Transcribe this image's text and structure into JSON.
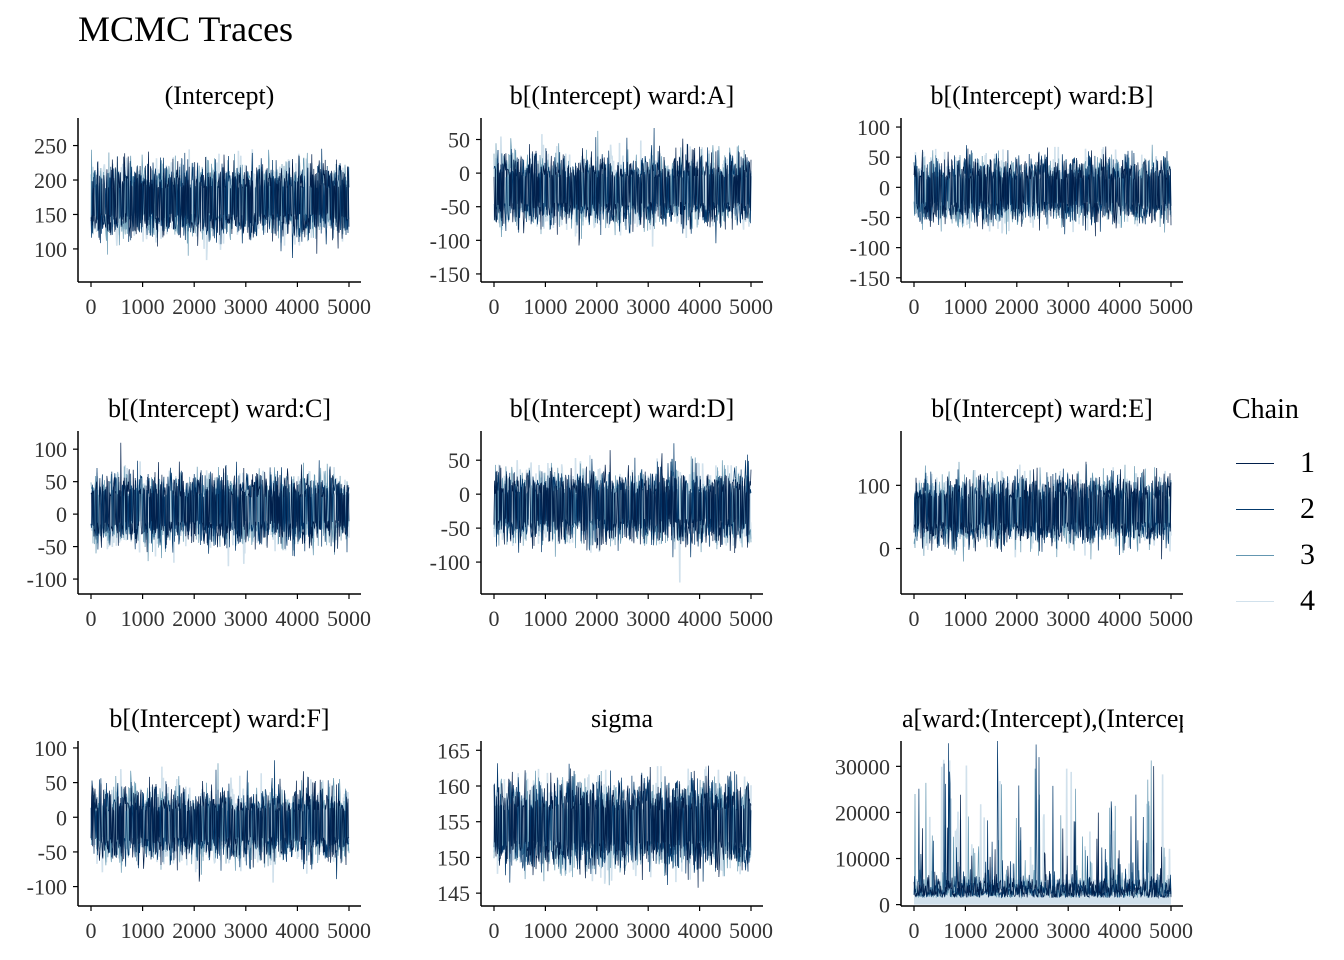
{
  "title": "MCMC Traces",
  "legend": {
    "title": "Chain",
    "items": [
      {
        "label": "1",
        "color": "#011f4b"
      },
      {
        "label": "2",
        "color": "#03396c"
      },
      {
        "label": "3",
        "color": "#6497b1"
      },
      {
        "label": "4",
        "color": "#d1e1ec"
      }
    ]
  },
  "chart_data": [
    {
      "type": "line",
      "title": "(Intercept)",
      "x_ticks": [
        "0",
        "1000",
        "2000",
        "3000",
        "4000",
        "5000"
      ],
      "y_ticks": [
        100,
        150,
        200,
        250
      ],
      "ylim": [
        52,
        290
      ],
      "center": 170,
      "band": 30,
      "spread": 28
    },
    {
      "type": "line",
      "title": "b[(Intercept) ward:A]",
      "x_ticks": [
        "0",
        "1000",
        "2000",
        "3000",
        "4000",
        "5000"
      ],
      "y_ticks": [
        -150,
        -100,
        -50,
        0,
        50
      ],
      "ylim": [
        -162,
        82
      ],
      "center": -25,
      "band": 30,
      "spread": 28
    },
    {
      "type": "line",
      "title": "b[(Intercept) ward:B]",
      "x_ticks": [
        "0",
        "1000",
        "2000",
        "3000",
        "4000",
        "5000"
      ],
      "y_ticks": [
        -150,
        -100,
        -50,
        0,
        50,
        100
      ],
      "ylim": [
        -157,
        115
      ],
      "center": -5,
      "band": 30,
      "spread": 28
    },
    {
      "type": "line",
      "title": "b[(Intercept) ward:C]",
      "x_ticks": [
        "0",
        "1000",
        "2000",
        "3000",
        "4000",
        "5000"
      ],
      "y_ticks": [
        -100,
        -50,
        0,
        50,
        100
      ],
      "ylim": [
        -123,
        128
      ],
      "center": 8,
      "band": 30,
      "spread": 28
    },
    {
      "type": "line",
      "title": "b[(Intercept) ward:D]",
      "x_ticks": [
        "0",
        "1000",
        "2000",
        "3000",
        "4000",
        "5000"
      ],
      "y_ticks": [
        -100,
        -50,
        0,
        50
      ],
      "ylim": [
        -147,
        93
      ],
      "center": -18,
      "band": 30,
      "spread": 28
    },
    {
      "type": "line",
      "title": "b[(Intercept) ward:E]",
      "x_ticks": [
        "0",
        "1000",
        "2000",
        "3000",
        "4000",
        "5000"
      ],
      "y_ticks": [
        0,
        100
      ],
      "ylim": [
        -72,
        186
      ],
      "center": 60,
      "band": 30,
      "spread": 28
    },
    {
      "type": "line",
      "title": "b[(Intercept) ward:F]",
      "x_ticks": [
        "0",
        "1000",
        "2000",
        "3000",
        "4000",
        "5000"
      ],
      "y_ticks": [
        -100,
        -50,
        0,
        50,
        100
      ],
      "ylim": [
        -128,
        110
      ],
      "center": -10,
      "band": 30,
      "spread": 28
    },
    {
      "type": "line",
      "title": "sigma",
      "x_ticks": [
        "0",
        "1000",
        "2000",
        "3000",
        "4000",
        "5000"
      ],
      "y_ticks": [
        145,
        150,
        155,
        160,
        165
      ],
      "ylim": [
        143.2,
        166.3
      ],
      "center": 154.5,
      "band": 3.5,
      "spread": 3.2
    },
    {
      "type": "line",
      "title": "a[ward:(Intercept),(Intercept)]",
      "x_ticks": [
        "0",
        "1000",
        "2000",
        "3000",
        "4000",
        "5000"
      ],
      "y_ticks": [
        0,
        10000,
        20000,
        30000
      ],
      "ylim": [
        -300,
        35500
      ],
      "center": 1500,
      "band": 3000,
      "spread": 2500,
      "skewed": true
    }
  ]
}
